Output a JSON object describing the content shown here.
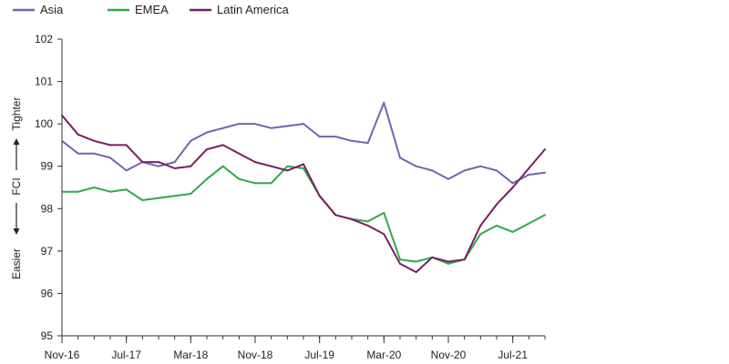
{
  "chart_data": {
    "type": "line",
    "title": "",
    "ylabel": {
      "top": "Tighter",
      "middle": "FCI",
      "bottom": "Easier"
    },
    "ylim": [
      95,
      102
    ],
    "yticks": [
      95,
      96,
      97,
      98,
      99,
      100,
      101,
      102
    ],
    "x_ticks": [
      "Nov-16",
      "Jul-17",
      "Mar-18",
      "Nov-18",
      "Jul-19",
      "Mar-20",
      "Nov-20",
      "Jul-21"
    ],
    "x": [
      "Nov-16",
      "Jan-17",
      "Mar-17",
      "May-17",
      "Jul-17",
      "Sep-17",
      "Nov-17",
      "Jan-18",
      "Mar-18",
      "May-18",
      "Jul-18",
      "Sep-18",
      "Nov-18",
      "Jan-19",
      "Mar-19",
      "May-19",
      "Jul-19",
      "Sep-19",
      "Nov-19",
      "Jan-20",
      "Mar-20",
      "May-20",
      "Jul-20",
      "Sep-20",
      "Nov-20",
      "Jan-21",
      "Mar-21",
      "May-21",
      "Jul-21",
      "Sep-21",
      "Oct-21"
    ],
    "legend_position": "top-left",
    "grid": false,
    "colors": {
      "Asia": "#7264b0",
      "EMEA": "#2eaa4a",
      "Latin America": "#7a1f63",
      "axis": "#333333"
    },
    "series": [
      {
        "name": "Asia",
        "values": [
          99.6,
          99.3,
          99.3,
          99.2,
          98.9,
          99.1,
          99.0,
          99.1,
          99.6,
          99.8,
          99.9,
          100.0,
          100.0,
          99.9,
          99.95,
          100.0,
          99.7,
          99.7,
          99.6,
          99.55,
          100.5,
          99.2,
          99.0,
          98.9,
          98.7,
          98.9,
          99.0,
          98.9,
          98.6,
          98.8,
          98.85
        ]
      },
      {
        "name": "EMEA",
        "values": [
          98.4,
          98.4,
          98.5,
          98.4,
          98.45,
          98.2,
          98.25,
          98.3,
          98.35,
          98.7,
          99.0,
          98.7,
          98.6,
          98.6,
          99.0,
          98.95,
          98.3,
          97.85,
          97.75,
          97.7,
          97.9,
          96.8,
          96.75,
          96.85,
          96.7,
          96.8,
          97.4,
          97.6,
          97.45,
          97.65,
          97.85
        ]
      },
      {
        "name": "Latin America",
        "values": [
          100.2,
          99.75,
          99.6,
          99.5,
          99.5,
          99.1,
          99.1,
          98.95,
          99.0,
          99.4,
          99.5,
          99.3,
          99.1,
          99.0,
          98.9,
          99.05,
          98.3,
          97.85,
          97.75,
          97.6,
          97.4,
          96.7,
          96.5,
          96.85,
          96.75,
          96.8,
          97.6,
          98.1,
          98.5,
          98.95,
          99.4
        ]
      }
    ]
  }
}
